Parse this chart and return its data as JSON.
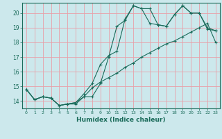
{
  "xlabel": "Humidex (Indice chaleur)",
  "xlim": [
    -0.5,
    23.5
  ],
  "ylim": [
    13.5,
    20.7
  ],
  "yticks": [
    14,
    15,
    16,
    17,
    18,
    19,
    20
  ],
  "xticks": [
    0,
    1,
    2,
    3,
    4,
    5,
    6,
    7,
    8,
    9,
    10,
    11,
    12,
    13,
    14,
    15,
    16,
    17,
    18,
    19,
    20,
    21,
    22,
    23
  ],
  "line_color": "#1a6b5a",
  "bg_color": "#cce8ec",
  "grid_color": "#e8a0a8",
  "line1_x": [
    0,
    1,
    2,
    3,
    4,
    5,
    6,
    7,
    8,
    9,
    10,
    11,
    12,
    13,
    14,
    15,
    16,
    17,
    18,
    19,
    20,
    21,
    22,
    23
  ],
  "line1_y": [
    14.8,
    14.1,
    14.3,
    14.2,
    13.7,
    13.8,
    13.8,
    14.3,
    14.3,
    15.2,
    17.0,
    19.1,
    19.5,
    20.5,
    20.3,
    20.3,
    19.2,
    19.1,
    19.9,
    20.5,
    20.0,
    20.0,
    18.9,
    18.8
  ],
  "line2_x": [
    0,
    1,
    2,
    3,
    4,
    5,
    6,
    7,
    8,
    9,
    10,
    11,
    12,
    13,
    14,
    15,
    16,
    17,
    18,
    19,
    20,
    21,
    22,
    23
  ],
  "line2_y": [
    14.8,
    14.1,
    14.3,
    14.2,
    13.7,
    13.8,
    13.9,
    14.5,
    15.2,
    16.5,
    17.1,
    17.4,
    19.6,
    20.5,
    20.3,
    19.3,
    19.2,
    19.1,
    19.9,
    20.5,
    20.0,
    20.0,
    19.0,
    18.8
  ],
  "line3_x": [
    0,
    1,
    2,
    3,
    4,
    5,
    6,
    7,
    8,
    9,
    10,
    11,
    12,
    13,
    14,
    15,
    16,
    17,
    18,
    19,
    20,
    21,
    22,
    23
  ],
  "line3_y": [
    14.8,
    14.1,
    14.3,
    14.2,
    13.7,
    13.8,
    13.9,
    14.3,
    14.9,
    15.3,
    15.6,
    15.9,
    16.3,
    16.6,
    17.0,
    17.3,
    17.6,
    17.9,
    18.1,
    18.4,
    18.7,
    19.0,
    19.3,
    18.0
  ]
}
